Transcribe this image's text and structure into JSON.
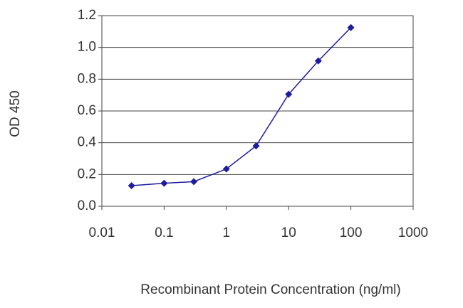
{
  "chart_data": {
    "type": "line",
    "x_label": "Recombinant Protein Concentration (ng/ml)",
    "y_label": "OD 450",
    "x": [
      0.03,
      0.1,
      0.3,
      1,
      3,
      10,
      30,
      100
    ],
    "series": [
      {
        "color": "#1c1c9c",
        "values": [
          0.13,
          0.145,
          0.155,
          0.235,
          0.38,
          0.705,
          0.915,
          1.125
        ]
      }
    ],
    "xscale": "log",
    "xlim": [
      0.01,
      1000
    ],
    "xticks": [
      0.01,
      0.1,
      1,
      10,
      100,
      1000
    ],
    "ylim": [
      0,
      1.2
    ],
    "yticks": [
      {
        "value": 0,
        "label": "0.0"
      },
      0.2,
      0.4,
      0.6,
      0.8,
      {
        "value": 1,
        "label": "1.0"
      },
      1.2
    ],
    "grid": true
  }
}
